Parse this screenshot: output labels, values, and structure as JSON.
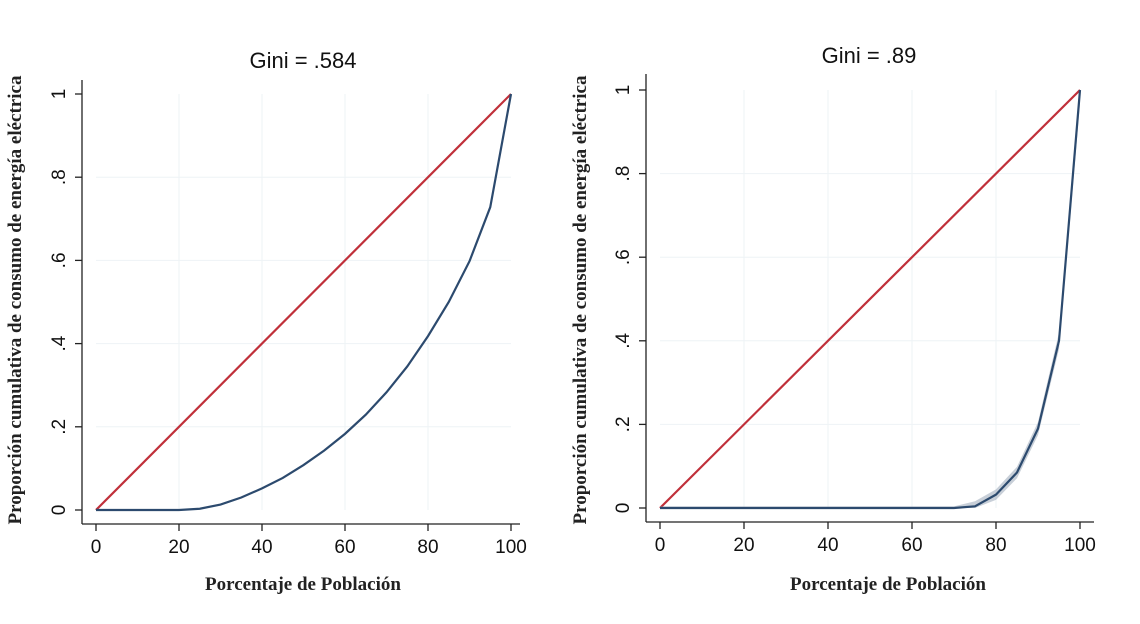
{
  "chart_data": [
    {
      "type": "line",
      "title": "Gini = .584",
      "xlabel": "Porcentaje de Población",
      "ylabel": "Proporción cumulativa de consumo de energía eléctrica",
      "xlim": [
        0,
        100
      ],
      "ylim": [
        0,
        1
      ],
      "x_ticks": [
        "0",
        "20",
        "40",
        "60",
        "80",
        "100"
      ],
      "y_ticks": [
        "0",
        ".2",
        ".4",
        ".6",
        ".8",
        "1"
      ],
      "grid": true,
      "colors": {
        "equality": "#c0303a",
        "lorenz": "#2c4a6e"
      },
      "series": [
        {
          "role": "equality",
          "x": [
            0,
            100
          ],
          "y": [
            0,
            1
          ]
        },
        {
          "role": "lorenz",
          "x": [
            0,
            5,
            10,
            15,
            20,
            25,
            30,
            35,
            40,
            45,
            50,
            55,
            60,
            65,
            70,
            75,
            80,
            85,
            90,
            95,
            100
          ],
          "y": [
            0,
            0,
            0,
            0,
            0,
            0.003,
            0.013,
            0.03,
            0.052,
            0.077,
            0.108,
            0.143,
            0.183,
            0.229,
            0.283,
            0.345,
            0.418,
            0.5,
            0.598,
            0.728,
            1
          ]
        }
      ]
    },
    {
      "type": "line",
      "title": "Gini = .89",
      "xlabel": "Porcentaje de Población",
      "ylabel": "Proporción cumulativa de consumo de energía eléctrica",
      "xlim": [
        0,
        100
      ],
      "ylim": [
        0,
        1
      ],
      "x_ticks": [
        "0",
        "20",
        "40",
        "60",
        "80",
        "100"
      ],
      "y_ticks": [
        "0",
        ".2",
        ".4",
        ".6",
        ".8",
        "1"
      ],
      "grid": true,
      "colors": {
        "equality": "#c0303a",
        "lorenz": "#2c4a6e"
      },
      "series": [
        {
          "role": "equality",
          "x": [
            0,
            100
          ],
          "y": [
            0,
            1
          ]
        },
        {
          "role": "lorenz",
          "x": [
            0,
            5,
            10,
            15,
            20,
            25,
            30,
            35,
            40,
            45,
            50,
            55,
            60,
            65,
            70,
            75,
            80,
            85,
            90,
            95,
            100
          ],
          "y": [
            0,
            0,
            0,
            0,
            0,
            0,
            0,
            0,
            0,
            0,
            0,
            0,
            0,
            0,
            0,
            0.004,
            0.032,
            0.085,
            0.19,
            0.4,
            1
          ]
        }
      ]
    }
  ]
}
